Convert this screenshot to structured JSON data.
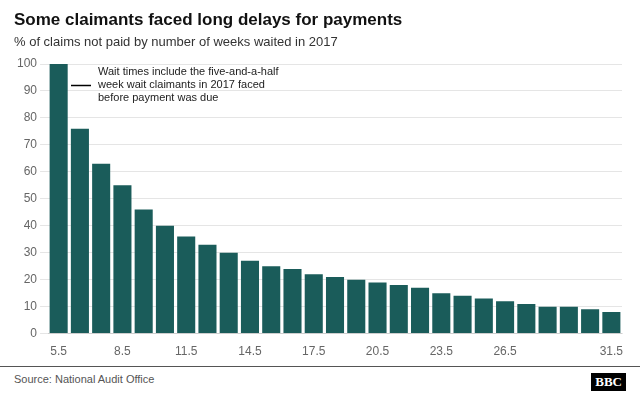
{
  "chart_data": {
    "type": "bar",
    "title": "Some claimants faced long delays for payments",
    "subtitle": "% of claims not paid by number of weeks waited in 2017",
    "source": "Source: National Audit Office",
    "annotations": [
      "Wait times include the five-and-a-half\nweek wait claimants in 2017 faced\nbefore payment was due",
      "BBC"
    ],
    "categories": [
      "5.5",
      null,
      null,
      "8.5",
      null,
      null,
      "11.5",
      null,
      null,
      "14.5",
      null,
      null,
      "17.5",
      null,
      null,
      "20.5",
      null,
      null,
      "23.5",
      null,
      null,
      "26.5",
      null,
      null,
      null,
      null,
      "31.5"
    ],
    "values": [
      100,
      76,
      63,
      55,
      46,
      40,
      36,
      33,
      30,
      27,
      25,
      24,
      22,
      21,
      20,
      19,
      18,
      17,
      15,
      14,
      13,
      12,
      11,
      10,
      10,
      9,
      8
    ],
    "color": "#1a5c5a",
    "ylim": [
      0,
      100
    ],
    "yticks": [
      0,
      10,
      20,
      30,
      40,
      50,
      60,
      70,
      80,
      90,
      100
    ],
    "grid": true
  }
}
